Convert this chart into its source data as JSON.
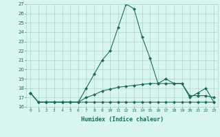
{
  "xlabel": "Humidex (Indice chaleur)",
  "x_values": [
    0,
    1,
    2,
    3,
    4,
    5,
    6,
    7,
    8,
    9,
    10,
    11,
    12,
    13,
    14,
    15,
    16,
    17,
    18,
    19,
    20,
    21,
    22,
    23
  ],
  "line1": [
    17.5,
    16.5,
    16.5,
    16.5,
    16.5,
    16.5,
    16.5,
    16.5,
    16.5,
    16.5,
    16.5,
    16.5,
    16.5,
    16.5,
    16.5,
    16.5,
    16.5,
    16.5,
    16.5,
    16.5,
    16.5,
    16.5,
    16.5,
    16.5
  ],
  "line2": [
    17.5,
    16.5,
    16.5,
    16.5,
    16.5,
    16.5,
    16.5,
    17.0,
    17.3,
    17.7,
    17.9,
    18.1,
    18.2,
    18.3,
    18.4,
    18.5,
    18.5,
    18.5,
    18.5,
    18.5,
    17.2,
    17.2,
    17.2,
    17.0
  ],
  "line3": [
    17.5,
    16.5,
    16.5,
    16.5,
    16.5,
    16.5,
    16.5,
    18.0,
    19.5,
    21.0,
    22.0,
    24.5,
    27.0,
    26.5,
    23.5,
    21.2,
    18.5,
    19.0,
    18.5,
    18.5,
    17.0,
    17.5,
    18.0,
    16.5
  ],
  "line_color": "#1a6b5a",
  "bg_color": "#d8f5f0",
  "grid_color": "#aed4cc",
  "ylim": [
    16,
    27
  ],
  "yticks": [
    16,
    17,
    18,
    19,
    20,
    21,
    22,
    23,
    24,
    25,
    26,
    27
  ],
  "xticks": [
    0,
    1,
    2,
    3,
    4,
    5,
    6,
    7,
    8,
    9,
    10,
    11,
    12,
    13,
    14,
    15,
    16,
    17,
    18,
    19,
    20,
    21,
    22,
    23
  ],
  "marker": "D",
  "markersize": 2.0,
  "linewidth": 0.8
}
